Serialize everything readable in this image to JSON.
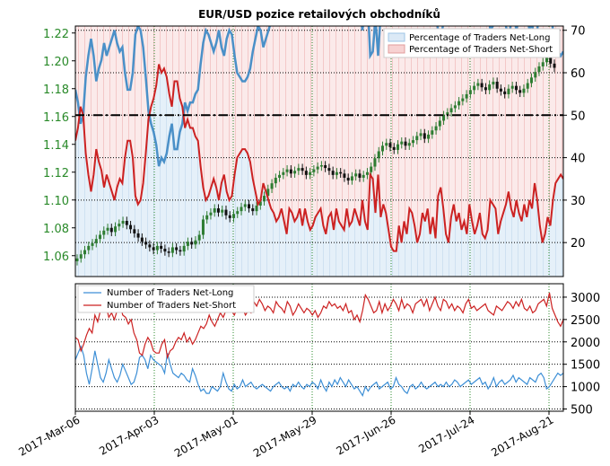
{
  "chart_data": {
    "title": "EUR/USD pozice retailových obchodníků",
    "x_tick_labels": [
      "2017-Mar-06",
      "2017-Apr-03",
      "2017-May-01",
      "2017-May-29",
      "2017-Jun-26",
      "2017-Jul-24",
      "2017-Aug-21"
    ],
    "top_panel": {
      "type": "candlestick+line",
      "price_axis": {
        "side": "left",
        "ticks": [
          1.06,
          1.08,
          1.1,
          1.12,
          1.14,
          1.16,
          1.18,
          1.2,
          1.22
        ],
        "range": [
          1.045,
          1.225
        ]
      },
      "percent_axis": {
        "side": "right",
        "ticks": [
          20,
          30,
          40,
          50,
          60,
          70
        ],
        "range": [
          12,
          71
        ]
      },
      "reference_line": {
        "value": 50,
        "style": "dash-dot"
      },
      "legend": [
        "Percentage of Traders Net-Long",
        "Percentage of Traders Net-Short"
      ],
      "colors": {
        "net_long": "#4a90c8",
        "net_short": "#cc2222",
        "candle": "#2e7d32",
        "long_fill": "#dbe9f6",
        "short_fill": "#f7dcdc"
      },
      "net_short_pct": [
        44,
        47,
        52,
        50,
        41,
        36,
        32,
        36,
        42,
        39,
        37,
        33,
        36,
        34,
        32,
        30,
        33,
        35,
        34,
        40,
        44,
        44,
        40,
        31,
        29,
        30,
        34,
        41,
        49,
        52,
        54,
        57,
        62,
        60,
        61,
        59,
        55,
        52,
        58,
        58,
        54,
        52,
        47,
        49,
        47,
        47,
        45,
        44,
        38,
        33,
        30,
        31,
        33,
        35,
        33,
        30,
        34,
        36,
        32,
        30,
        31,
        36,
        40,
        41,
        42,
        42,
        41,
        39,
        35,
        32,
        29,
        30,
        34,
        32,
        30,
        28,
        27,
        25,
        26,
        28,
        25,
        22,
        28,
        27,
        25,
        26,
        28,
        24,
        28,
        25,
        23,
        24,
        26,
        27,
        28,
        24,
        22,
        26,
        27,
        23,
        28,
        25,
        24,
        23,
        28,
        24,
        25,
        28,
        26,
        24,
        30,
        25,
        23,
        36,
        35,
        27,
        36,
        26,
        29,
        27,
        23,
        19,
        18,
        18,
        24,
        20,
        25,
        22,
        28,
        27,
        24,
        20,
        22,
        27,
        25,
        28,
        22,
        26,
        21,
        31,
        33,
        28,
        22,
        20,
        26,
        29,
        25,
        27,
        23,
        25,
        22,
        29,
        25,
        22,
        24,
        27,
        22,
        21,
        23,
        30,
        29,
        28,
        22,
        25,
        27,
        29,
        32,
        28,
        26,
        30,
        27,
        25,
        29,
        26,
        30,
        28,
        34,
        30,
        24,
        20,
        22,
        26,
        24,
        30,
        34,
        35,
        36,
        35
      ],
      "net_long_pct": [
        56,
        53,
        48,
        50,
        59,
        64,
        68,
        64,
        58,
        61,
        63,
        67,
        64,
        66,
        68,
        70,
        67,
        65,
        66,
        60,
        56,
        56,
        60,
        69,
        71,
        70,
        66,
        59,
        51,
        48,
        46,
        43,
        38,
        40,
        39,
        41,
        45,
        48,
        42,
        42,
        46,
        48,
        53,
        51,
        53,
        53,
        55,
        56,
        62,
        67,
        70,
        69,
        67,
        65,
        67,
        70,
        66,
        64,
        68,
        70,
        69,
        64,
        60,
        59,
        58,
        58,
        59,
        61,
        65,
        68,
        71,
        70,
        66,
        68,
        70,
        72,
        73,
        75,
        74,
        72,
        75,
        78,
        72,
        73,
        75,
        74,
        72,
        76,
        72,
        75,
        77,
        76,
        74,
        73,
        72,
        76,
        78,
        74,
        73,
        77,
        72,
        75,
        76,
        77,
        72,
        76,
        75,
        72,
        74,
        76,
        70,
        75,
        77,
        64,
        65,
        73,
        64,
        74,
        71,
        73,
        77,
        81,
        82,
        82,
        76,
        80,
        75,
        78,
        72,
        73,
        76,
        80,
        78,
        73,
        75,
        72,
        78,
        74,
        79,
        69,
        67,
        72,
        78,
        80,
        74,
        71,
        75,
        73,
        77,
        75,
        78,
        71,
        75,
        78,
        76,
        73,
        78,
        79,
        77,
        70,
        71,
        72,
        78,
        75,
        73,
        71,
        68,
        72,
        74,
        70,
        73,
        75,
        71,
        74,
        70,
        72,
        66,
        70,
        76,
        80,
        78,
        74,
        76,
        70,
        66,
        65,
        64,
        65
      ],
      "candle_close": [
        1.058,
        1.061,
        1.064,
        1.067,
        1.069,
        1.072,
        1.075,
        1.078,
        1.08,
        1.077,
        1.081,
        1.083,
        1.085,
        1.082,
        1.079,
        1.076,
        1.073,
        1.07,
        1.068,
        1.066,
        1.064,
        1.067,
        1.065,
        1.063,
        1.062,
        1.066,
        1.064,
        1.063,
        1.067,
        1.07,
        1.068,
        1.071,
        1.075,
        1.086,
        1.089,
        1.091,
        1.094,
        1.091,
        1.093,
        1.089,
        1.087,
        1.09,
        1.092,
        1.095,
        1.097,
        1.094,
        1.092,
        1.096,
        1.099,
        1.103,
        1.108,
        1.112,
        1.116,
        1.118,
        1.12,
        1.122,
        1.119,
        1.121,
        1.123,
        1.121,
        1.118,
        1.12,
        1.122,
        1.124,
        1.125,
        1.123,
        1.121,
        1.118,
        1.12,
        1.119,
        1.116,
        1.114,
        1.117,
        1.119,
        1.116,
        1.118,
        1.12,
        1.124,
        1.13,
        1.135,
        1.139,
        1.141,
        1.138,
        1.136,
        1.14,
        1.142,
        1.139,
        1.141,
        1.143,
        1.146,
        1.148,
        1.144,
        1.147,
        1.15,
        1.153,
        1.157,
        1.161,
        1.163,
        1.166,
        1.168,
        1.171,
        1.173,
        1.176,
        1.179,
        1.182,
        1.184,
        1.181,
        1.179,
        1.183,
        1.185,
        1.18,
        1.178,
        1.176,
        1.18,
        1.182,
        1.179,
        1.177,
        1.18,
        1.184,
        1.188,
        1.192,
        1.196,
        1.199,
        1.203,
        1.198,
        1.195
      ]
    },
    "bottom_panel": {
      "type": "line",
      "axis": {
        "side": "right",
        "ticks": [
          500,
          1000,
          1500,
          2000,
          2500,
          3000
        ],
        "range": [
          450,
          3300
        ]
      },
      "legend": [
        "Number of Traders Net-Long",
        "Number of Traders Net-Short"
      ],
      "colors": {
        "net_long": "#3d8fd6",
        "net_short": "#cc2222"
      },
      "net_long": [
        1600,
        1750,
        1900,
        1700,
        1300,
        1050,
        1400,
        1800,
        1500,
        1200,
        1100,
        1300,
        1600,
        1400,
        1200,
        1100,
        1250,
        1500,
        1350,
        1200,
        1050,
        1100,
        1300,
        1650,
        1700,
        1600,
        1400,
        1700,
        1600,
        1550,
        1500,
        1450,
        1300,
        1750,
        1500,
        1300,
        1250,
        1200,
        1300,
        1250,
        1150,
        1100,
        1400,
        1250,
        1050,
        900,
        950,
        850,
        850,
        1000,
        950,
        900,
        1000,
        1300,
        1100,
        950,
        900,
        1050,
        950,
        1000,
        1150,
        1000,
        1050,
        1100,
        1000,
        950,
        1000,
        1050,
        1000,
        950,
        900,
        1000,
        1050,
        1100,
        1000,
        950,
        1000,
        900,
        1050,
        1000,
        1100,
        1000,
        950,
        1050,
        1000,
        1100,
        1050,
        950,
        1150,
        1000,
        900,
        1100,
        1000,
        1150,
        1050,
        1200,
        1100,
        1000,
        1150,
        1050,
        950,
        1000,
        900,
        800,
        1000,
        900,
        1000,
        1050,
        1100,
        950,
        1000,
        1050,
        1100,
        950,
        1000,
        1200,
        1050,
        1000,
        900,
        850,
        1000,
        1050,
        950,
        1000,
        1100,
        1000,
        950,
        1000,
        1050,
        1100,
        1000,
        1050,
        1000,
        1100,
        1000,
        1050,
        1150,
        1100,
        1000,
        1050,
        1100,
        1150,
        1050,
        1100,
        1150,
        1200,
        1050,
        1100,
        950,
        1050,
        1200,
        1000,
        1100,
        1150,
        1050,
        1100,
        1150,
        1250,
        1100,
        1200,
        1150,
        1100,
        1050,
        1200,
        1150,
        1100,
        1250,
        1300,
        1200,
        950,
        1000,
        1100,
        1200,
        1300,
        1250,
        1300
      ],
      "net_short": [
        2100,
        2050,
        1800,
        1950,
        2150,
        2300,
        2200,
        2600,
        2450,
        2700,
        2900,
        2800,
        2550,
        2650,
        2500,
        2700,
        2850,
        2600,
        2550,
        2400,
        2500,
        2200,
        2050,
        1750,
        1700,
        1950,
        2100,
        2000,
        1800,
        1750,
        1750,
        1950,
        2050,
        1650,
        1800,
        1850,
        2000,
        2100,
        2050,
        2200,
        2000,
        2100,
        1950,
        2050,
        2200,
        2350,
        2300,
        2400,
        2600,
        2450,
        2350,
        2500,
        2650,
        2550,
        2700,
        2800,
        2700,
        2600,
        2750,
        2850,
        2750,
        2600,
        2700,
        2650,
        2900,
        2800,
        2950,
        2850,
        2700,
        2800,
        2750,
        2650,
        2900,
        2800,
        2750,
        2650,
        2900,
        2800,
        2600,
        2700,
        2850,
        2750,
        2650,
        2750,
        2700,
        2600,
        2700,
        2550,
        2650,
        2800,
        2750,
        2900,
        2800,
        2850,
        2750,
        2800,
        2700,
        2850,
        2650,
        2700,
        2500,
        2600,
        2450,
        2700,
        3050,
        2950,
        2800,
        2650,
        2700,
        2900,
        2650,
        2850,
        2700,
        2800,
        2950,
        2850,
        2700,
        2950,
        2750,
        2850,
        2800,
        2650,
        2850,
        2900,
        2950,
        2800,
        2950,
        2700,
        2850,
        3000,
        2800,
        2700,
        2950,
        2900,
        2750,
        2850,
        2700,
        2800,
        2750,
        2650,
        2850,
        2950,
        2750,
        2800,
        2700,
        2750,
        2800,
        2850,
        2700,
        2650,
        2600,
        2800,
        2750,
        2700,
        2800,
        2900,
        2850,
        2750,
        2900,
        2800,
        2950,
        2750,
        2700,
        2800,
        2650,
        2700,
        2850,
        2900,
        2950,
        2800,
        3100,
        2750,
        2600,
        2450,
        2350,
        2500
      ]
    }
  }
}
